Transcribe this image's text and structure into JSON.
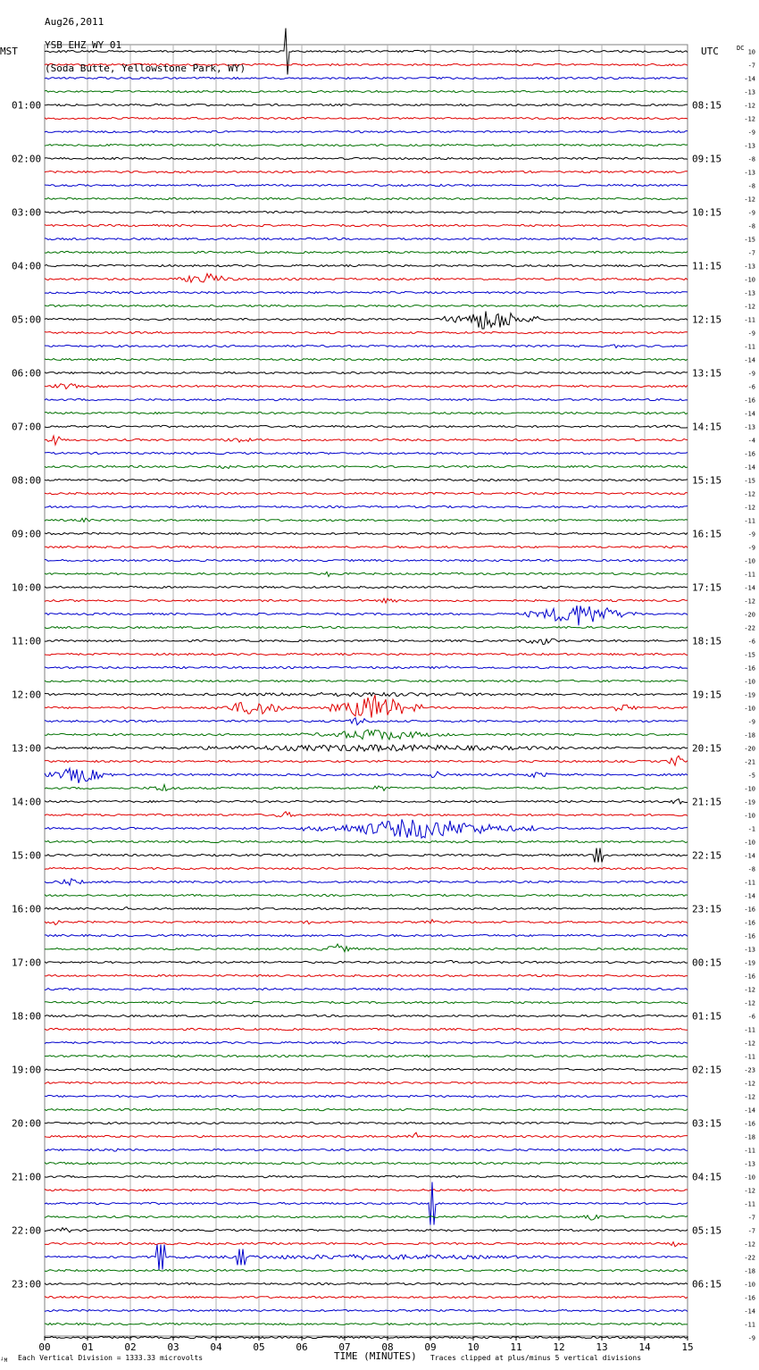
{
  "header": {
    "date": "Aug26,2011",
    "station": "YSB EHZ WY 01",
    "location": "(Soda Butte, Yellowstone Park, WY)"
  },
  "left_axis_label": "MST",
  "right_axis_label": "UTC",
  "dc_label": "DC",
  "footer": {
    "xlabel": "TIME (MINUTES)",
    "scale_note": "Each Vertical Division = 1333.33 microvolts",
    "clip_note": "Traces clipped at plus/minus 5 vertical divisions",
    "corner_mark": "┘M"
  },
  "colors": {
    "cycle": [
      "#000000",
      "#e00000",
      "#0000cc",
      "#007000"
    ],
    "grid": "#b0b0b0"
  },
  "chart_data": {
    "type": "line",
    "title": "",
    "xlabel": "TIME (MINUTES)",
    "x_ticks": [
      "00",
      "01",
      "02",
      "03",
      "04",
      "05",
      "06",
      "07",
      "08",
      "09",
      "10",
      "11",
      "12",
      "13",
      "14",
      "15"
    ],
    "xlim": [
      0,
      15
    ],
    "traces_per_hour": 4,
    "mst_hour_labels": [
      "01:00",
      "02:00",
      "03:00",
      "04:00",
      "05:00",
      "06:00",
      "07:00",
      "08:00",
      "09:00",
      "10:00",
      "11:00",
      "12:00",
      "13:00",
      "14:00",
      "15:00",
      "16:00",
      "17:00",
      "18:00",
      "19:00",
      "20:00",
      "21:00",
      "22:00",
      "23:00"
    ],
    "utc_hour_labels": [
      "08:15",
      "09:15",
      "10:15",
      "11:15",
      "12:15",
      "13:15",
      "14:15",
      "15:15",
      "16:15",
      "17:15",
      "18:15",
      "19:15",
      "20:15",
      "21:15",
      "22:15",
      "23:15",
      "00:15",
      "01:15",
      "02:15",
      "03:15",
      "04:15",
      "05:15",
      "06:15"
    ],
    "dc_offsets": [
      "10",
      "-7",
      "-14",
      "-13",
      "-12",
      "-12",
      "-9",
      "-13",
      "-8",
      "-13",
      "-8",
      "-12",
      "-9",
      "-8",
      "-15",
      "-7",
      "-13",
      "-10",
      "-13",
      "-12",
      "-11",
      "-9",
      "-11",
      "-14",
      "-9",
      "-6",
      "-16",
      "-14",
      "-13",
      "-4",
      "-16",
      "-14",
      "-15",
      "-12",
      "-12",
      "-11",
      "-9",
      "-9",
      "-10",
      "-11",
      "-14",
      "-12",
      "-20",
      "-22",
      "-6",
      "-15",
      "-16",
      "-10",
      "-19",
      "-10",
      "-9",
      "-18",
      "-20",
      "-21",
      "-5",
      "-10",
      "-19",
      "-10",
      "-1",
      "-10",
      "-14",
      "-8",
      "-11",
      "-14",
      "-16",
      "-16",
      "-16",
      "-13",
      "-19",
      "-16",
      "-12",
      "-12",
      "-6",
      "-11",
      "-12",
      "-11",
      "-23",
      "-12",
      "-12",
      "-14",
      "-16",
      "-18",
      "-11",
      "-13",
      "-10",
      "-12",
      "-11",
      "-7",
      "-7",
      "-12",
      "-22",
      "-18",
      "-10",
      "-16",
      "-14",
      "-11",
      "-9"
    ],
    "events": [
      {
        "trace": 0,
        "start": 5.6,
        "end": 5.7,
        "amp": 26,
        "kind": "spike"
      },
      {
        "trace": 17,
        "start": 3.0,
        "end": 4.5,
        "amp": 7
      },
      {
        "trace": 20,
        "start": 9.3,
        "end": 11.5,
        "amp": 14
      },
      {
        "trace": 22,
        "start": 13.1,
        "end": 13.5,
        "amp": 3
      },
      {
        "trace": 25,
        "start": 0.0,
        "end": 1.0,
        "amp": 4
      },
      {
        "trace": 28,
        "start": 14.3,
        "end": 15.0,
        "amp": 6
      },
      {
        "trace": 29,
        "start": 0.0,
        "end": 0.5,
        "amp": 6
      },
      {
        "trace": 29,
        "start": 4.0,
        "end": 5.0,
        "amp": 4
      },
      {
        "trace": 31,
        "start": 4.0,
        "end": 4.5,
        "amp": 3
      },
      {
        "trace": 35,
        "start": 0.6,
        "end": 1.2,
        "amp": 3
      },
      {
        "trace": 39,
        "start": 6.4,
        "end": 6.8,
        "amp": 4
      },
      {
        "trace": 41,
        "start": 7.5,
        "end": 8.5,
        "amp": 3
      },
      {
        "trace": 42,
        "start": 11.2,
        "end": 13.8,
        "amp": 14
      },
      {
        "trace": 44,
        "start": 11.0,
        "end": 12.2,
        "amp": 5
      },
      {
        "trace": 46,
        "start": 9.0,
        "end": 9.6,
        "amp": 3
      },
      {
        "trace": 48,
        "start": 0.0,
        "end": 15.0,
        "amp": 2.5
      },
      {
        "trace": 49,
        "start": 4.0,
        "end": 5.8,
        "amp": 10
      },
      {
        "trace": 49,
        "start": 6.6,
        "end": 8.8,
        "amp": 16
      },
      {
        "trace": 49,
        "start": 13.0,
        "end": 14.0,
        "amp": 5
      },
      {
        "trace": 50,
        "start": 6.8,
        "end": 7.8,
        "amp": 5
      },
      {
        "trace": 51,
        "start": 6.0,
        "end": 9.5,
        "amp": 7
      },
      {
        "trace": 52,
        "start": 0.0,
        "end": 15.0,
        "amp": 4
      },
      {
        "trace": 53,
        "start": 14.5,
        "end": 15.0,
        "amp": 8
      },
      {
        "trace": 54,
        "start": 0.0,
        "end": 1.6,
        "amp": 10
      },
      {
        "trace": 54,
        "start": 8.9,
        "end": 9.4,
        "amp": 6
      },
      {
        "trace": 54,
        "start": 11.0,
        "end": 12.0,
        "amp": 4
      },
      {
        "trace": 55,
        "start": 2.3,
        "end": 3.3,
        "amp": 5
      },
      {
        "trace": 55,
        "start": 7.5,
        "end": 8.2,
        "amp": 4
      },
      {
        "trace": 56,
        "start": 14.5,
        "end": 15.0,
        "amp": 4
      },
      {
        "trace": 57,
        "start": 5.2,
        "end": 6.0,
        "amp": 4
      },
      {
        "trace": 58,
        "start": 6.0,
        "end": 11.5,
        "amp": 12
      },
      {
        "trace": 59,
        "start": 9.5,
        "end": 10.0,
        "amp": 3
      },
      {
        "trace": 60,
        "start": 12.8,
        "end": 13.0,
        "amp": 8,
        "kind": "spike"
      },
      {
        "trace": 62,
        "start": 0.0,
        "end": 1.2,
        "amp": 4
      },
      {
        "trace": 64,
        "start": 1.7,
        "end": 2.0,
        "amp": 4
      },
      {
        "trace": 65,
        "start": 0.0,
        "end": 0.5,
        "amp": 3
      },
      {
        "trace": 65,
        "start": 5.8,
        "end": 6.4,
        "amp": 3
      },
      {
        "trace": 65,
        "start": 8.8,
        "end": 9.3,
        "amp": 3
      },
      {
        "trace": 67,
        "start": 6.3,
        "end": 7.3,
        "amp": 6
      },
      {
        "trace": 68,
        "start": 9.3,
        "end": 9.6,
        "amp": 3
      },
      {
        "trace": 81,
        "start": 8.5,
        "end": 8.8,
        "amp": 6
      },
      {
        "trace": 82,
        "start": 1.5,
        "end": 1.9,
        "amp": 3
      },
      {
        "trace": 86,
        "start": 9.0,
        "end": 9.1,
        "amp": 24,
        "kind": "spike"
      },
      {
        "trace": 87,
        "start": 12.5,
        "end": 13.0,
        "amp": 7
      },
      {
        "trace": 88,
        "start": 0.2,
        "end": 0.7,
        "amp": 5
      },
      {
        "trace": 89,
        "start": 14.5,
        "end": 15.0,
        "amp": 4
      },
      {
        "trace": 90,
        "start": 0.0,
        "end": 15.0,
        "amp": 3
      },
      {
        "trace": 90,
        "start": 2.6,
        "end": 2.8,
        "amp": 14,
        "kind": "spike"
      },
      {
        "trace": 90,
        "start": 4.5,
        "end": 4.7,
        "amp": 9,
        "kind": "spike"
      }
    ]
  }
}
